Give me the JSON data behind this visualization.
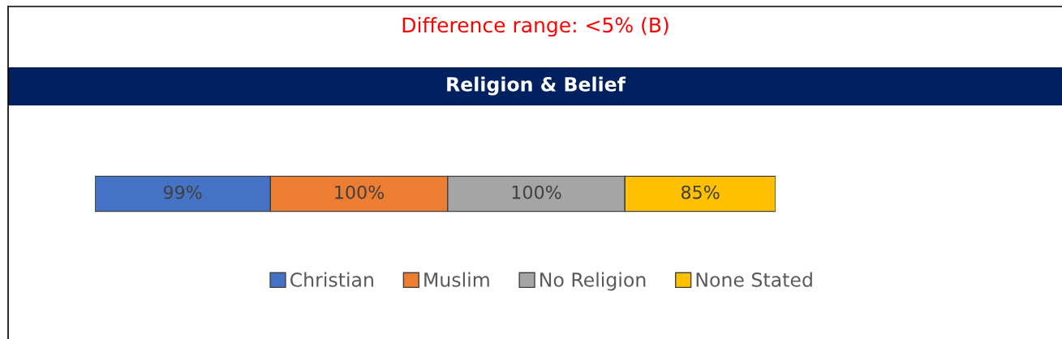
{
  "chart_data": {
    "type": "bar",
    "orientation": "horizontal",
    "stacked": true,
    "title": "Religion & Belief",
    "annotations": [
      "Difference range: <5% (B)"
    ],
    "categories": [
      null
    ],
    "series": [
      {
        "name": "Christian",
        "color": "#4472c4",
        "values": [
          99
        ],
        "value_labels": [
          "99%"
        ]
      },
      {
        "name": "Muslim",
        "color": "#ed7d31",
        "values": [
          100
        ],
        "value_labels": [
          "100%"
        ]
      },
      {
        "name": "No Religion",
        "color": "#a5a5a5",
        "values": [
          100
        ],
        "value_labels": [
          "100%"
        ]
      },
      {
        "name": "None Stated",
        "color": "#ffc000",
        "values": [
          85
        ],
        "value_labels": [
          "85%"
        ]
      }
    ],
    "legend": "bottom",
    "grid": false,
    "tick_labels": false
  }
}
